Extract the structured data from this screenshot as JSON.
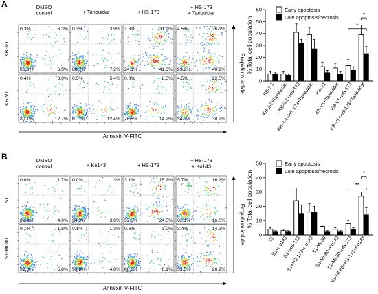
{
  "panels": [
    {
      "letter": "A",
      "treatments": [
        "DMSO\ncontrol",
        "+ Tariquidar",
        "+ HS-173",
        "+ HS-173\n+ Tariquidar"
      ],
      "rows": [
        {
          "label": "KB-3-1",
          "plots": [
            {
              "ul": "0.3%",
              "ur": "6.3%",
              "ll": "86.9%",
              "lr": "6.5%"
            },
            {
              "ul": "0.3%",
              "ur": "3.9%",
              "ll": "88.7%",
              "lr": "7.2%"
            },
            {
              "ul": "2.8%",
              "ur": "31.9%",
              "ll": "24.1%",
              "lr": "41.3%"
            },
            {
              "ul": "4.5%",
              "ur": "26.1%",
              "ll": "29.2%",
              "lr": "40.2%"
            }
          ]
        },
        {
          "label": "KB-V1",
          "plots": [
            {
              "ul": "0.4%",
              "ur": "6.9%",
              "ll": "80.1%",
              "lr": "12.7%"
            },
            {
              "ul": "0.5%",
              "ur": "5.4%",
              "ll": "81.7%",
              "lr": "12.4%"
            },
            {
              "ul": "0.8%",
              "ur": "8.5%",
              "ll": "76.5%",
              "lr": "14.2%"
            },
            {
              "ul": "4.5%",
              "ur": "22.5%",
              "ll": "34.2%",
              "lr": "38.9%"
            }
          ]
        }
      ],
      "xlabel": "Annexin V-FITC",
      "ylabel": "Propidium iodide"
    },
    {
      "letter": "B",
      "treatments": [
        "DMSO\ncontrol",
        "+ Ko143",
        "+ HS-173",
        "+ HS-173\n+ Ko143"
      ],
      "rows": [
        {
          "label": "S1",
          "plots": [
            {
              "ul": "0.0%",
              "ur": "1.7%",
              "ll": "93.4%",
              "lr": "4.9%"
            },
            {
              "ul": "0.0%",
              "ur": "1.3%",
              "ll": "94.9%",
              "lr": "3.8%"
            },
            {
              "ul": "3.1%",
              "ur": "15.2%",
              "ll": "57.3%",
              "lr": "24.5%"
            },
            {
              "ul": "5.7%",
              "ur": "16.2%",
              "ll": "62.1%",
              "lr": "16.0%"
            }
          ]
        },
        {
          "label": "S1-MI-80",
          "plots": [
            {
              "ul": "0.1%",
              "ur": "1.8%",
              "ll": "92.3%",
              "lr": "5.8%"
            },
            {
              "ul": "0.1%",
              "ur": "1.3%",
              "ll": "93.8%",
              "lr": "4.8%"
            },
            {
              "ul": "0.6%",
              "ur": "3.0%",
              "ll": "88.3%",
              "lr": "8.1%"
            },
            {
              "ul": "3.4%",
              "ur": "14.2%",
              "ll": "55.5%",
              "lr": "26.9%"
            }
          ]
        }
      ],
      "xlabel": "Annexin V-FITC",
      "ylabel": "Propidium iodide"
    }
  ],
  "chart_data": [
    {
      "type": "bar",
      "ylabel": "% Total cell population",
      "ylim": [
        0,
        60
      ],
      "yticks": [
        0,
        10,
        20,
        30,
        40,
        50,
        60
      ],
      "legend_position": "top-right",
      "categories": [
        "KB-3-1",
        "KB-3-1+Tariquidar",
        "KB-3-1+HS-173",
        "KB-3-1+HS-173+Tariquidar",
        "KB-V1",
        "KB-V1+Tariquidar",
        "KB-V1+HS-173",
        "KB-V1+HS-173+Tariquidar"
      ],
      "series": [
        {
          "name": "Early apoptosis",
          "fill": "#ffffff",
          "values": [
            6,
            6,
            41,
            39,
            12,
            11,
            13,
            39
          ],
          "errors": [
            2,
            2,
            7,
            6,
            4,
            4,
            5,
            8
          ]
        },
        {
          "name": "Late apoptosis/necrosis",
          "fill": "#000000",
          "values": [
            6,
            5,
            32,
            27,
            7,
            6,
            9,
            23
          ],
          "errors": [
            1,
            1,
            3,
            8,
            2,
            2,
            3,
            6
          ]
        }
      ],
      "significance": [
        {
          "label": "*",
          "from": 6,
          "to": 7,
          "level": 44
        },
        {
          "label": "*",
          "from": 7,
          "to": 7,
          "level": 53
        }
      ]
    },
    {
      "type": "bar",
      "ylabel": "% Total cell population",
      "ylim": [
        0,
        50
      ],
      "yticks": [
        0,
        10,
        20,
        30,
        40,
        50
      ],
      "legend_position": "top-right",
      "categories": [
        "S1",
        "S1+Ko143",
        "S1+HS-173",
        "S1+HS-173+Ko143",
        "S1-MI-80",
        "S1-MI-80+Ko143",
        "S1-MI-80+HS-173",
        "S1-MI-80+HS-173+Ko143"
      ],
      "series": [
        {
          "name": "Early apoptosis",
          "fill": "#ffffff",
          "values": [
            4,
            3,
            24,
            16,
            6,
            4,
            8,
            27
          ],
          "errors": [
            1,
            1,
            9,
            6,
            1,
            1,
            2,
            3
          ]
        },
        {
          "name": "Late apoptosis/necrosis",
          "fill": "#000000",
          "values": [
            2,
            2,
            15,
            16,
            2,
            2,
            4,
            14
          ],
          "errors": [
            1,
            1,
            6,
            4,
            1,
            1,
            1,
            5
          ]
        }
      ],
      "significance": [
        {
          "label": "**",
          "from": 6,
          "to": 7,
          "level": 33
        },
        {
          "label": "*",
          "from": 7,
          "to": 7,
          "level": 41
        }
      ]
    }
  ]
}
